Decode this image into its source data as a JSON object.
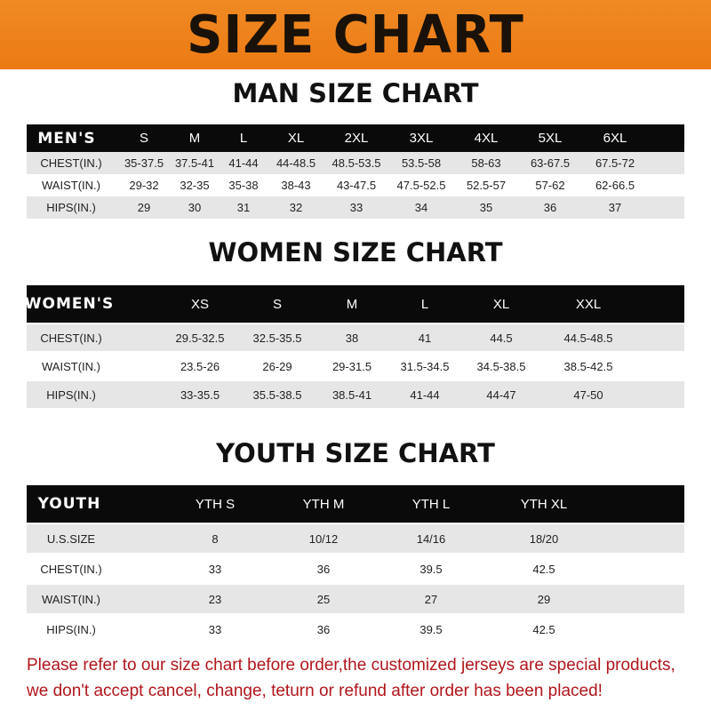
{
  "title": "SIZE CHART",
  "men": {
    "title": "MAN SIZE CHART",
    "header": [
      "MEN'S",
      "S",
      "M",
      "L",
      "XL",
      "2XL",
      "3XL",
      "4XL",
      "5XL",
      "6XL"
    ],
    "rows": [
      [
        "CHEST(IN.)",
        "35-37.5",
        "37.5-41",
        "41-44",
        "44-48.5",
        "48.5-53.5",
        "53.5-58",
        "58-63",
        "63-67.5",
        "67.5-72"
      ],
      [
        "WAIST(IN.)",
        "29-32",
        "32-35",
        "35-38",
        "38-43",
        "43-47.5",
        "47.5-52.5",
        "52.5-57",
        "57-62",
        "62-66.5"
      ],
      [
        "HIPS(IN.)",
        "29",
        "30",
        "31",
        "32",
        "33",
        "34",
        "35",
        "36",
        "37"
      ]
    ]
  },
  "women": {
    "title": "WOMEN SIZE CHART",
    "header": [
      "WOMEN'S",
      "XS",
      "S",
      "M",
      "L",
      "XL",
      "XXL"
    ],
    "rows": [
      [
        "CHEST(IN.)",
        "29.5-32.5",
        "32.5-35.5",
        "38",
        "41",
        "44.5",
        "44.5-48.5"
      ],
      [
        "WAIST(IN.)",
        "23.5-26",
        "26-29",
        "29-31.5",
        "31.5-34.5",
        "34.5-38.5",
        "38.5-42.5"
      ],
      [
        "HIPS(IN.)",
        "33-35.5",
        "35.5-38.5",
        "38.5-41",
        "41-44",
        "44-47",
        "47-50"
      ]
    ]
  },
  "youth": {
    "title": "YOUTH SIZE CHART",
    "header": [
      "YOUTH",
      "YTH S",
      "YTH M",
      "YTH L",
      "YTH XL"
    ],
    "rows": [
      [
        "U.S.SIZE",
        "8",
        "10/12",
        "14/16",
        "18/20"
      ],
      [
        "CHEST(IN.)",
        "33",
        "36",
        "39.5",
        "42.5"
      ],
      [
        "WAIST(IN.)",
        "23",
        "25",
        "27",
        "29"
      ],
      [
        "HIPS(IN.)",
        "33",
        "36",
        "39.5",
        "42.5"
      ]
    ]
  },
  "note_line1": "Please refer to our size chart before order,the customized jerseys are special products,",
  "note_line2": "we don't accept cancel, change, teturn or refund after order has been placed!",
  "colors": {
    "banner": "#ec7a14",
    "header_row": "#0a0a0a",
    "stripe": "#e6e6e6",
    "note": "#b0161c"
  }
}
